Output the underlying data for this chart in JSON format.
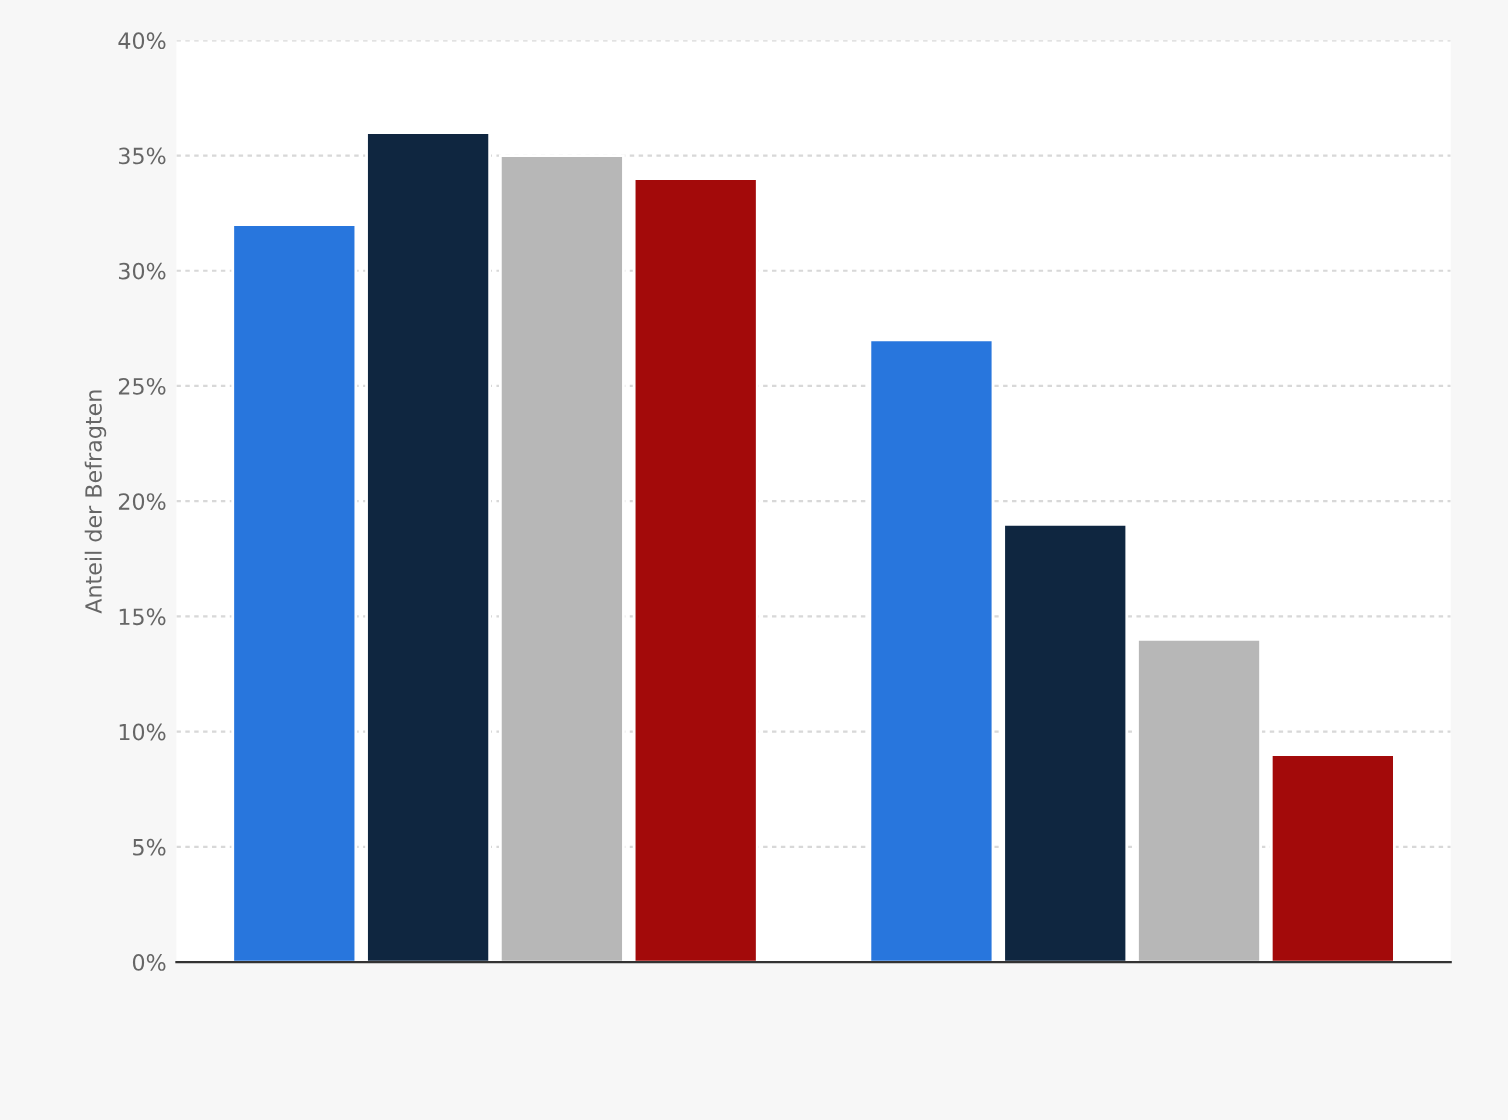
{
  "chart_data": {
    "type": "bar",
    "ylabel": "Anteil der Befragten",
    "categories": [
      null,
      null
    ],
    "series": [
      {
        "color": "#2876dd",
        "values": [
          32,
          27
        ]
      },
      {
        "color": "#0f2640",
        "values": [
          36,
          19
        ]
      },
      {
        "color": "#b7b7b7",
        "values": [
          35,
          14
        ]
      },
      {
        "color": "#a30a0a",
        "values": [
          34,
          9
        ]
      }
    ],
    "ylim": [
      0,
      40
    ],
    "yticks": [
      {
        "value": 0,
        "label": "0%"
      },
      {
        "value": 5,
        "label": "5%"
      },
      {
        "value": 10,
        "label": "10%"
      },
      {
        "value": 15,
        "label": "15%"
      },
      {
        "value": 20,
        "label": "20%"
      },
      {
        "value": 25,
        "label": "25%"
      },
      {
        "value": 30,
        "label": "30%"
      },
      {
        "value": 35,
        "label": "35%"
      },
      {
        "value": 40,
        "label": "40%"
      }
    ],
    "grid": "y"
  }
}
